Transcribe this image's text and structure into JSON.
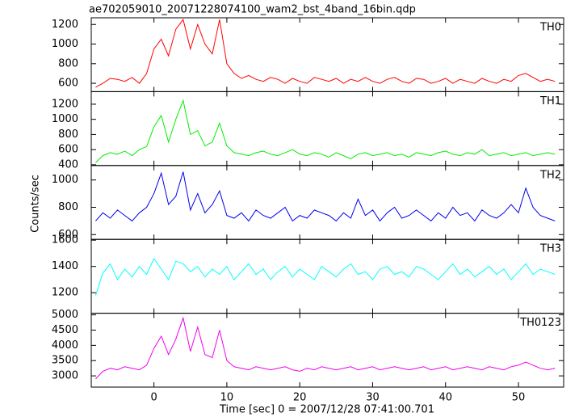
{
  "chart_data": {
    "type": "line",
    "title": "ae702059010_20071228074100_wam2_bst_4band_16bin.qdp",
    "x_label": "Time [sec] 0 = 2007/12/28 07:41:00.701",
    "y_label": "Counts/sec",
    "xlim": [
      -8.6,
      56.2
    ],
    "xticks": [
      0,
      10,
      20,
      30,
      40,
      50
    ],
    "x": [
      -8,
      -7,
      -6,
      -5,
      -4,
      -3,
      -2,
      -1,
      0,
      1,
      2,
      3,
      4,
      5,
      6,
      7,
      8,
      9,
      10,
      11,
      12,
      13,
      14,
      15,
      16,
      17,
      18,
      19,
      20,
      21,
      22,
      23,
      24,
      25,
      26,
      27,
      28,
      29,
      30,
      31,
      32,
      33,
      34,
      35,
      36,
      37,
      38,
      39,
      40,
      41,
      42,
      43,
      44,
      45,
      46,
      47,
      48,
      49,
      50,
      51,
      52,
      53,
      54,
      55
    ],
    "series": [
      {
        "name": "TH0",
        "color": "#ff0000",
        "ylim": [
          515,
          1268
        ],
        "yticks": [
          600,
          800,
          1000,
          1200
        ],
        "values": [
          560,
          600,
          650,
          640,
          620,
          660,
          600,
          700,
          950,
          1050,
          880,
          1150,
          1250,
          950,
          1200,
          1000,
          900,
          1250,
          800,
          700,
          650,
          680,
          640,
          620,
          660,
          640,
          600,
          650,
          620,
          600,
          660,
          640,
          620,
          650,
          600,
          640,
          620,
          660,
          620,
          600,
          640,
          660,
          620,
          600,
          650,
          640,
          600,
          620,
          650,
          600,
          640,
          620,
          600,
          650,
          620,
          600,
          640,
          620,
          680,
          700,
          660,
          620,
          640,
          620
        ]
      },
      {
        "name": "TH1",
        "color": "#00ee00",
        "ylim": [
          390,
          1366
        ],
        "yticks": [
          400,
          600,
          800,
          1000,
          1200
        ],
        "values": [
          430,
          520,
          560,
          540,
          580,
          520,
          600,
          640,
          900,
          1050,
          700,
          1000,
          1250,
          800,
          850,
          650,
          700,
          950,
          650,
          560,
          540,
          520,
          560,
          580,
          540,
          520,
          560,
          600,
          540,
          520,
          560,
          540,
          500,
          560,
          520,
          480,
          540,
          560,
          520,
          540,
          560,
          520,
          540,
          500,
          560,
          540,
          520,
          560,
          580,
          540,
          520,
          560,
          540,
          600,
          520,
          540,
          560,
          520,
          540,
          560,
          520,
          540,
          560,
          540
        ]
      },
      {
        "name": "TH2",
        "color": "#0000ee",
        "ylim": [
          565,
          1106
        ],
        "yticks": [
          600,
          800,
          1000
        ],
        "values": [
          700,
          760,
          720,
          780,
          740,
          700,
          760,
          800,
          900,
          1050,
          820,
          880,
          1060,
          780,
          900,
          760,
          820,
          920,
          740,
          720,
          760,
          700,
          780,
          740,
          720,
          760,
          800,
          700,
          740,
          720,
          780,
          760,
          740,
          700,
          760,
          720,
          860,
          740,
          780,
          700,
          760,
          800,
          720,
          740,
          780,
          740,
          700,
          760,
          720,
          800,
          740,
          760,
          700,
          780,
          740,
          720,
          760,
          820,
          760,
          940,
          800,
          740,
          720,
          700
        ]
      },
      {
        "name": "TH3",
        "color": "#00ffff",
        "ylim": [
          1044,
          1606
        ],
        "yticks": [
          1200,
          1400,
          1600
        ],
        "values": [
          1180,
          1350,
          1420,
          1300,
          1380,
          1320,
          1400,
          1340,
          1460,
          1380,
          1300,
          1440,
          1420,
          1360,
          1400,
          1320,
          1380,
          1340,
          1400,
          1300,
          1360,
          1420,
          1340,
          1380,
          1300,
          1360,
          1400,
          1320,
          1380,
          1340,
          1300,
          1400,
          1360,
          1320,
          1380,
          1420,
          1340,
          1360,
          1300,
          1380,
          1400,
          1340,
          1360,
          1320,
          1400,
          1380,
          1340,
          1300,
          1360,
          1420,
          1340,
          1380,
          1320,
          1360,
          1400,
          1340,
          1380,
          1300,
          1360,
          1420,
          1340,
          1380,
          1360,
          1340
        ]
      },
      {
        "name": "TH0123",
        "color": "#ee00ee",
        "ylim": [
          2632,
          5053
        ],
        "yticks": [
          3000,
          3500,
          4000,
          4500,
          5000
        ],
        "values": [
          2900,
          3150,
          3250,
          3200,
          3300,
          3250,
          3200,
          3350,
          3900,
          4300,
          3700,
          4200,
          4900,
          3800,
          4600,
          3700,
          3600,
          4500,
          3500,
          3300,
          3250,
          3200,
          3300,
          3250,
          3200,
          3250,
          3300,
          3200,
          3150,
          3250,
          3200,
          3300,
          3250,
          3200,
          3250,
          3300,
          3200,
          3250,
          3300,
          3200,
          3250,
          3300,
          3250,
          3200,
          3250,
          3300,
          3200,
          3250,
          3300,
          3200,
          3250,
          3300,
          3250,
          3200,
          3300,
          3250,
          3200,
          3300,
          3350,
          3450,
          3350,
          3250,
          3200,
          3250
        ]
      }
    ]
  }
}
